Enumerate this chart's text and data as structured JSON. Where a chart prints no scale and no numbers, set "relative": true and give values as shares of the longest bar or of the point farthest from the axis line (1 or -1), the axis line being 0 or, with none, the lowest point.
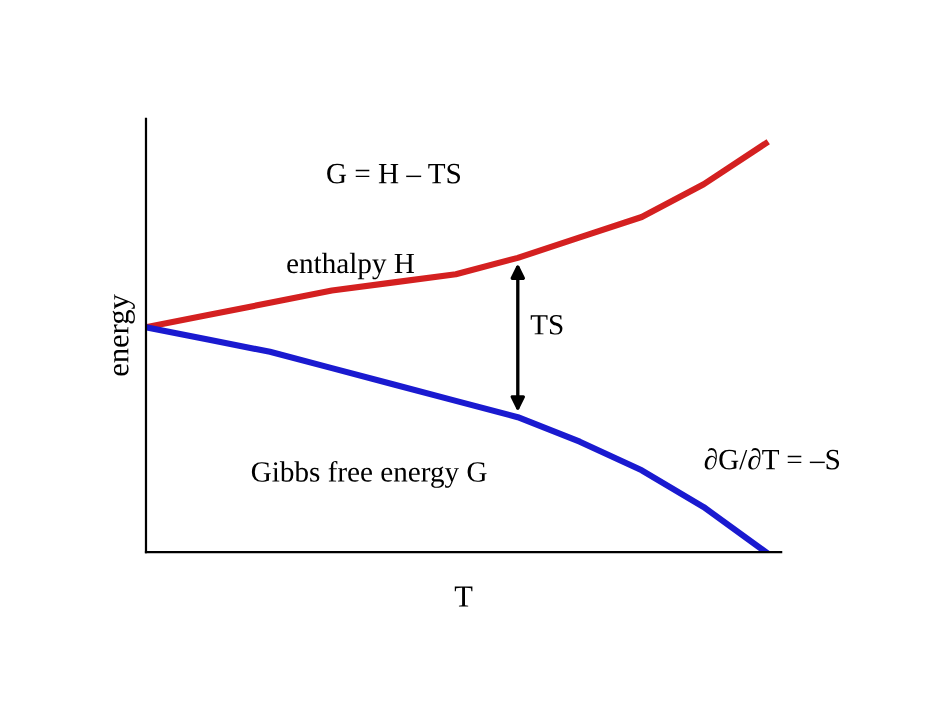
{
  "chart_data": {
    "type": "line",
    "relative": true,
    "xlabel": "T",
    "ylabel": "energy",
    "categories": [
      null,
      null,
      null,
      null,
      null,
      null,
      null,
      null,
      null,
      null,
      null
    ],
    "series": [
      {
        "name": "enthalpy H",
        "color": "#d42020",
        "values": [
          0.55,
          0.58,
          0.61,
          0.64,
          0.66,
          0.68,
          0.72,
          0.77,
          0.82,
          0.9,
          1
        ]
      },
      {
        "name": "Gibbs free energy G",
        "color": "#1a1ad0",
        "values": [
          0.55,
          0.52,
          0.49,
          0.45,
          0.41,
          0.37,
          0.33,
          0.27,
          0.2,
          0.11,
          0
        ]
      }
    ],
    "annotations": [
      "G = H – TS",
      "TS",
      "∂G/∂T = –S"
    ],
    "grid": false,
    "legend": false,
    "marker": "none",
    "line_style": "solid"
  }
}
